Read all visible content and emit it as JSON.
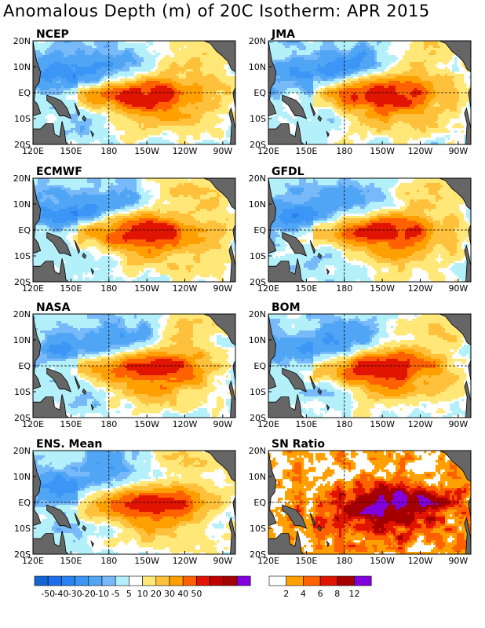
{
  "title": "Anomalous Depth (m) of 20C Isotherm: APR 2015",
  "chart_data": {
    "type": "heatmap",
    "panels": [
      {
        "name": "NCEP"
      },
      {
        "name": "JMA"
      },
      {
        "name": "ECMWF"
      },
      {
        "name": "GFDL"
      },
      {
        "name": "NASA"
      },
      {
        "name": "BOM"
      },
      {
        "name": "ENS. Mean"
      },
      {
        "name": "SN Ratio"
      }
    ],
    "x_ticks": [
      "120E",
      "150E",
      "180",
      "150W",
      "120W",
      "90W"
    ],
    "y_ticks": [
      "20N",
      "10N",
      "EQ",
      "10S",
      "20S"
    ],
    "anomaly_scale": {
      "labels": [
        "-50",
        "-40",
        "-30",
        "-20",
        "-10",
        "-5",
        "5",
        "10",
        "20",
        "30",
        "40",
        "50"
      ],
      "colors": [
        "#1464d2",
        "#1e6eeb",
        "#2882f0",
        "#3c96f5",
        "#50a5f5",
        "#78b9fa",
        "#b4f0fa",
        "#ffffff",
        "#ffe878",
        "#ffc03c",
        "#ffa000",
        "#ff6000",
        "#e11400",
        "#c00000",
        "#a50000",
        "#8200dc"
      ]
    },
    "sn_scale": {
      "labels": [
        "2",
        "4",
        "6",
        "8",
        "12"
      ],
      "colors": [
        "#ffffff",
        "#ffa000",
        "#ff6000",
        "#e11400",
        "#a50000",
        "#8200dc"
      ]
    },
    "land_color": "#666666"
  }
}
